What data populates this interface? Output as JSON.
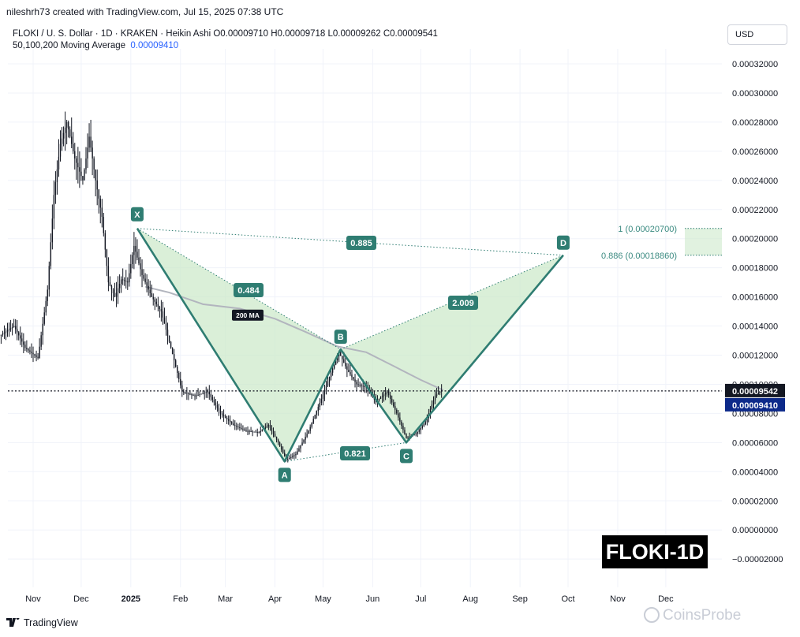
{
  "header": {
    "author_line": "nileshrh73 created with TradingView.com, Jul 15, 2025 07:38 UTC",
    "symbol_line": "FLOKI / U. S. Dollar · 1D · KRAKEN · Heikin Ashi  O0.00009710  H0.00009718  L0.00009262  C0.00009541",
    "ma_label": "50,100,200 Moving Average",
    "ma_value": "0.00009410"
  },
  "currency_button": "USD",
  "badge": "FLOKI-1D",
  "footer": {
    "brand": "TradingView",
    "watermark": "CoinsProbe"
  },
  "colors": {
    "pattern_fill": "#cdeacb",
    "pattern_line": "#2f7d72",
    "label_bg": "#2f7d72",
    "candle": "#131722",
    "ma": "#b2b5be",
    "price_label": "#131722",
    "ma_label": "#0d2a8a"
  },
  "chart_data": {
    "type": "candlestick",
    "series_style": "Heikin Ashi",
    "interval": "1D",
    "exchange": "KRAKEN",
    "y_range": [
      -2e-05,
      0.00032
    ],
    "y_ticks": [
      "0.00032000",
      "0.00030000",
      "0.00028000",
      "0.00026000",
      "0.00024000",
      "0.00022000",
      "0.00020000",
      "0.00018000",
      "0.00016000",
      "0.00014000",
      "0.00012000",
      "0.00010000",
      "0.00008000",
      "0.00006000",
      "0.00004000",
      "0.00002000",
      "0.00000000",
      "−0.00002000"
    ],
    "x_ticks": [
      "Nov",
      "Dec",
      "2025",
      "Feb",
      "Mar",
      "Apr",
      "May",
      "Jun",
      "Jul",
      "Aug",
      "Sep",
      "Oct",
      "Nov",
      "Dec"
    ],
    "last_price": {
      "label": "0.00009542",
      "value": 9.542e-05
    },
    "ma_last": {
      "label": "0.00009410",
      "value": 9.41e-05
    },
    "ma_tag": "200 MA",
    "price_path": [
      [
        "2024-10-12",
        0.000134
      ],
      [
        "2024-10-20",
        0.00014
      ],
      [
        "2024-10-27",
        0.000125
      ],
      [
        "2024-11-04",
        0.000118
      ],
      [
        "2024-11-10",
        0.000165
      ],
      [
        "2024-11-14",
        0.00023
      ],
      [
        "2024-11-18",
        0.000265
      ],
      [
        "2024-11-22",
        0.00028
      ],
      [
        "2024-11-27",
        0.000255
      ],
      [
        "2024-12-02",
        0.00024
      ],
      [
        "2024-12-06",
        0.00027
      ],
      [
        "2024-12-10",
        0.00024
      ],
      [
        "2024-12-14",
        0.000215
      ],
      [
        "2024-12-18",
        0.00017
      ],
      [
        "2024-12-22",
        0.00016
      ],
      [
        "2024-12-26",
        0.000172
      ],
      [
        "2024-12-30",
        0.00017
      ],
      [
        "2025-01-03",
        0.000195
      ],
      [
        "2025-01-08",
        0.000175
      ],
      [
        "2025-01-14",
        0.00016
      ],
      [
        "2025-01-20",
        0.00015
      ],
      [
        "2025-01-26",
        0.000125
      ],
      [
        "2025-02-02",
        9.5e-05
      ],
      [
        "2025-02-10",
        9.2e-05
      ],
      [
        "2025-02-18",
        9.5e-05
      ],
      [
        "2025-02-26",
        8e-05
      ],
      [
        "2025-03-06",
        7.2e-05
      ],
      [
        "2025-03-14",
        6.8e-05
      ],
      [
        "2025-03-22",
        6.7e-05
      ],
      [
        "2025-03-28",
        7.2e-05
      ],
      [
        "2025-04-03",
        6e-05
      ],
      [
        "2025-04-08",
        4.8e-05
      ],
      [
        "2025-04-14",
        5.2e-05
      ],
      [
        "2025-04-22",
        6.8e-05
      ],
      [
        "2025-04-30",
        9e-05
      ],
      [
        "2025-05-06",
        0.000108
      ],
      [
        "2025-05-11",
        0.000122
      ],
      [
        "2025-05-16",
        0.00011
      ],
      [
        "2025-05-22",
        0.0001
      ],
      [
        "2025-05-28",
        9.8e-05
      ],
      [
        "2025-06-03",
        8.8e-05
      ],
      [
        "2025-06-10",
        9.5e-05
      ],
      [
        "2025-06-16",
        8e-05
      ],
      [
        "2025-06-22",
        6.3e-05
      ],
      [
        "2025-06-28",
        6.6e-05
      ],
      [
        "2025-07-04",
        7.4e-05
      ],
      [
        "2025-07-10",
        9.2e-05
      ],
      [
        "2025-07-14",
        9.6e-05
      ]
    ],
    "moving_average": [
      [
        "2025-01-10",
        0.000167
      ],
      [
        "2025-01-25",
        0.000163
      ],
      [
        "2025-02-15",
        0.000155
      ],
      [
        "2025-03-10",
        0.000152
      ],
      [
        "2025-04-01",
        0.000145
      ],
      [
        "2025-04-20",
        0.000136
      ],
      [
        "2025-05-10",
        0.000126
      ],
      [
        "2025-05-28",
        0.000122
      ],
      [
        "2025-06-15",
        0.000112
      ],
      [
        "2025-07-01",
        0.000103
      ],
      [
        "2025-07-15",
        9.6e-05
      ]
    ],
    "harmonic_pattern": {
      "points": [
        {
          "label": "X",
          "date": "2025-01-05",
          "price": 0.000207
        },
        {
          "label": "A",
          "date": "2025-04-07",
          "price": 4.7e-05
        },
        {
          "label": "B",
          "date": "2025-05-12",
          "price": 0.000124
        },
        {
          "label": "C",
          "date": "2025-06-22",
          "price": 6e-05
        },
        {
          "label": "D",
          "date": "2025-09-28",
          "price": 0.0001886
        }
      ],
      "ratios": [
        {
          "label": "0.484",
          "from": "X",
          "to": "B"
        },
        {
          "label": "0.885",
          "from": "X",
          "to": "D"
        },
        {
          "label": "0.821",
          "from": "A",
          "to": "C"
        },
        {
          "label": "2.009",
          "from": "B",
          "to": "D"
        }
      ],
      "target_zone": {
        "levels": [
          {
            "label": "1 (0.00020700)",
            "value": 0.000207
          },
          {
            "label": "0.886 (0.00018860)",
            "value": 0.0001886
          }
        ]
      }
    }
  }
}
